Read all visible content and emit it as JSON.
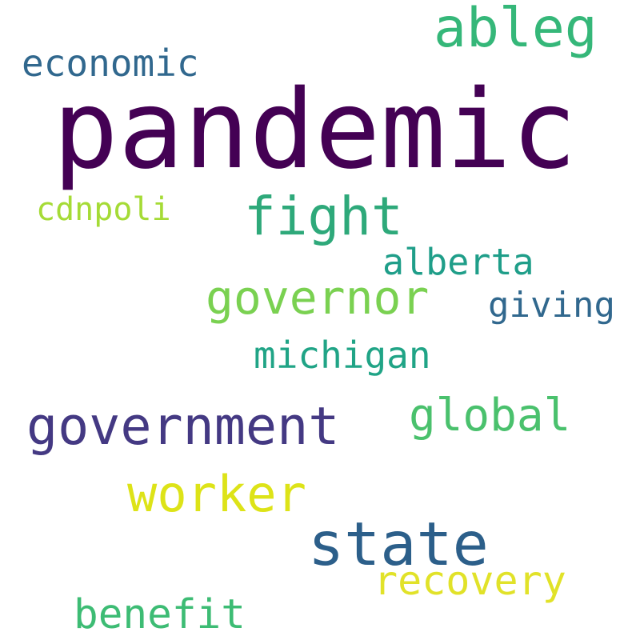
{
  "words": [
    {
      "text": "pandemic",
      "color": "#440154"
    },
    {
      "text": "ableg",
      "color": "#35b779"
    },
    {
      "text": "economic",
      "color": "#31688e"
    },
    {
      "text": "fight",
      "color": "#2ea97a"
    },
    {
      "text": "cdnpoli",
      "color": "#a5db36"
    },
    {
      "text": "alberta",
      "color": "#1f9e89"
    },
    {
      "text": "governor",
      "color": "#7ad151"
    },
    {
      "text": "giving",
      "color": "#31688e"
    },
    {
      "text": "michigan",
      "color": "#20a486"
    },
    {
      "text": "government",
      "color": "#443983"
    },
    {
      "text": "global",
      "color": "#4ac16d"
    },
    {
      "text": "worker",
      "color": "#dde318"
    },
    {
      "text": "state",
      "color": "#2c5f8a"
    },
    {
      "text": "recovery",
      "color": "#e1e229"
    },
    {
      "text": "benefit",
      "color": "#3dbc74"
    }
  ]
}
